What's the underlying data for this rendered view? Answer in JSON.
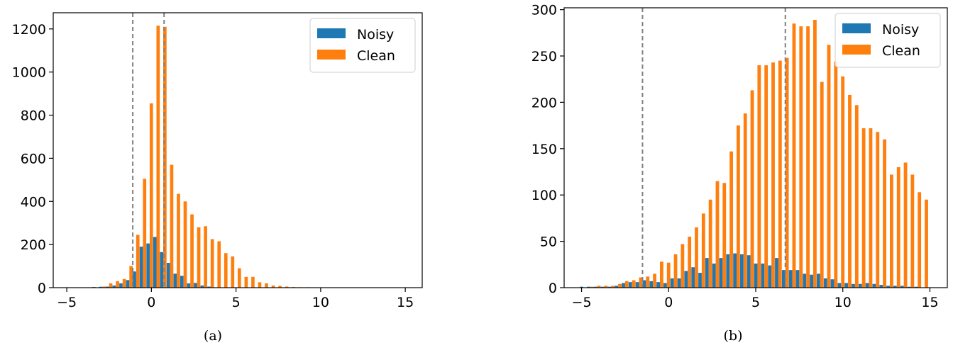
{
  "colors": {
    "noisy": "#1f77b4",
    "clean": "#ff7f0e",
    "vline": "#808080"
  },
  "chart_data": [
    {
      "type": "bar",
      "caption": "(a)",
      "xlim": [
        -5.8,
        16.0
      ],
      "ylim": [
        0,
        1275
      ],
      "xticks": [
        -5,
        0,
        5,
        10,
        15
      ],
      "yticks": [
        0,
        200,
        400,
        600,
        800,
        1000,
        1200
      ],
      "vlines": [
        -1.1,
        0.75
      ],
      "bin_width": 0.4,
      "legend": {
        "position": "top-right",
        "entries": [
          "Noisy",
          "Clean"
        ]
      },
      "series": [
        {
          "name": "Noisy",
          "x": [
            -3.3,
            -2.9,
            -2.5,
            -2.1,
            -1.7,
            -1.3,
            -0.9,
            -0.5,
            -0.1,
            0.3,
            0.7,
            1.1,
            1.5,
            1.9,
            2.3,
            2.7,
            3.1,
            3.5
          ],
          "values": [
            3,
            4,
            5,
            10,
            20,
            35,
            75,
            190,
            205,
            235,
            165,
            115,
            65,
            55,
            20,
            22,
            10,
            5
          ]
        },
        {
          "name": "Clean",
          "x": [
            -2.9,
            -2.5,
            -2.1,
            -1.7,
            -1.3,
            -0.9,
            -0.5,
            -0.1,
            0.3,
            0.7,
            1.1,
            1.5,
            1.9,
            2.3,
            2.7,
            3.1,
            3.5,
            3.9,
            4.3,
            4.7,
            5.1,
            5.5,
            5.9,
            6.3,
            6.7,
            7.1,
            7.5,
            7.9,
            8.3,
            8.7,
            9.1
          ],
          "values": [
            5,
            20,
            30,
            40,
            100,
            245,
            505,
            855,
            1215,
            1210,
            570,
            435,
            400,
            340,
            280,
            285,
            225,
            215,
            160,
            145,
            90,
            50,
            50,
            25,
            20,
            10,
            8,
            5,
            3,
            2,
            2
          ]
        }
      ]
    },
    {
      "type": "bar",
      "caption": "(b)",
      "xlim": [
        -6.0,
        16.0
      ],
      "ylim": [
        0,
        302
      ],
      "xticks": [
        -5,
        0,
        5,
        10,
        15
      ],
      "yticks": [
        0,
        50,
        100,
        150,
        200,
        250,
        300
      ],
      "vlines": [
        -1.5,
        6.7
      ],
      "bin_width": 0.4,
      "legend": {
        "position": "top-right",
        "entries": [
          "Noisy",
          "Clean"
        ]
      },
      "series": [
        {
          "name": "Noisy",
          "x": [
            -4.9,
            -4.5,
            -4.1,
            -3.7,
            -3.3,
            -2.9,
            -2.5,
            -2.1,
            -1.7,
            -1.3,
            -0.9,
            -0.5,
            -0.1,
            0.3,
            0.7,
            1.1,
            1.5,
            1.9,
            2.3,
            2.7,
            3.1,
            3.5,
            3.9,
            4.3,
            4.7,
            5.1,
            5.5,
            5.9,
            6.3,
            6.7,
            7.1,
            7.5,
            7.9,
            8.3,
            8.7,
            9.1,
            9.5,
            9.9,
            10.3,
            10.7,
            11.1,
            11.5,
            11.9,
            12.3,
            12.7,
            13.1,
            13.5,
            13.9,
            14.3
          ],
          "values": [
            1,
            1,
            1,
            1,
            1,
            2,
            5,
            6,
            6,
            8,
            7,
            6,
            5,
            10,
            10,
            18,
            22,
            16,
            32,
            26,
            32,
            36,
            37,
            36,
            35,
            26,
            26,
            24,
            32,
            19,
            19,
            19,
            15,
            14,
            15,
            10,
            9,
            5,
            5,
            4,
            4,
            5,
            4,
            3,
            2,
            2,
            2,
            1,
            1
          ]
        },
        {
          "name": "Clean",
          "x": [
            -4.5,
            -4.1,
            -3.7,
            -3.3,
            -2.9,
            -2.5,
            -2.1,
            -1.7,
            -1.3,
            -0.9,
            -0.5,
            -0.1,
            0.3,
            0.7,
            1.1,
            1.5,
            1.9,
            2.3,
            2.7,
            3.1,
            3.5,
            3.9,
            4.3,
            4.7,
            5.1,
            5.5,
            5.9,
            6.3,
            6.7,
            7.1,
            7.5,
            7.9,
            8.3,
            8.7,
            9.1,
            9.5,
            9.9,
            10.3,
            10.7,
            11.1,
            11.5,
            11.9,
            12.3,
            12.7,
            13.1,
            13.5,
            13.9,
            14.3,
            14.7
          ],
          "values": [
            1,
            2,
            2,
            2,
            4,
            7,
            8,
            11,
            12,
            15,
            28,
            27,
            36,
            47,
            55,
            65,
            80,
            95,
            115,
            113,
            147,
            175,
            188,
            213,
            240,
            240,
            243,
            245,
            248,
            285,
            282,
            282,
            289,
            222,
            262,
            244,
            228,
            208,
            197,
            172,
            172,
            168,
            160,
            122,
            130,
            135,
            122,
            103,
            95
          ]
        }
      ]
    }
  ]
}
